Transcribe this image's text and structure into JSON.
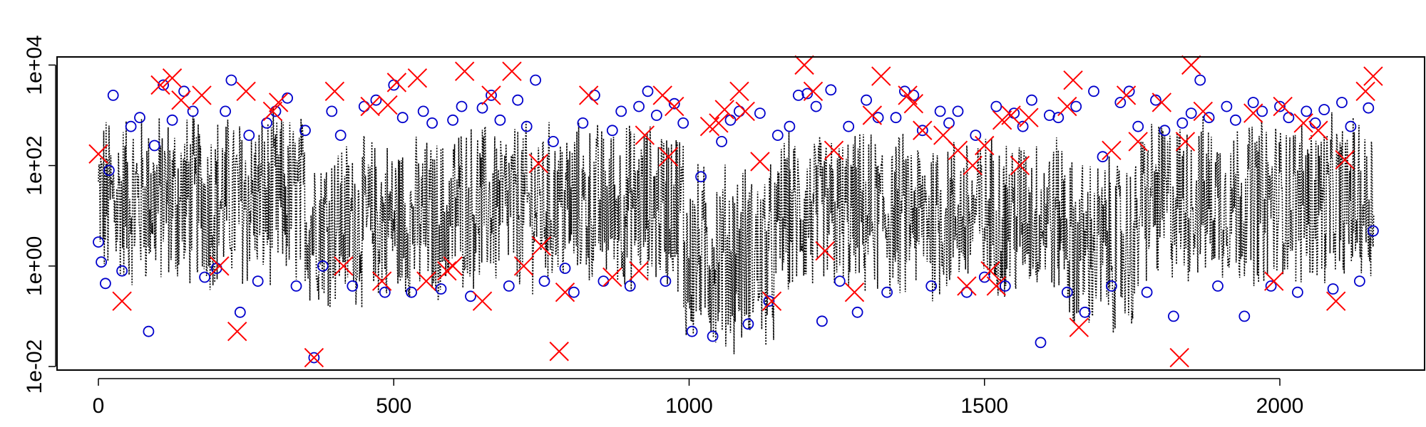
{
  "chart_data": {
    "type": "line",
    "title": "",
    "xlabel": "",
    "ylabel": "",
    "x_scale": "linear",
    "y_scale": "log10",
    "xlim": [
      -70,
      2245
    ],
    "ylim": [
      0.0085,
      14500
    ],
    "x_ticks": [
      {
        "value": 0,
        "label": "0"
      },
      {
        "value": 500,
        "label": "500"
      },
      {
        "value": 1000,
        "label": "1000"
      },
      {
        "value": 1500,
        "label": "1500"
      },
      {
        "value": 2000,
        "label": "2000"
      }
    ],
    "y_ticks": [
      {
        "value": 0.01,
        "label": "1e-02"
      },
      {
        "value": 1,
        "label": "1e+00"
      },
      {
        "value": 100,
        "label": "1e+02"
      },
      {
        "value": 10000,
        "label": "1e+04"
      }
    ],
    "grid": false,
    "legend": "none",
    "n_points": 2160,
    "series": [
      {
        "kind": "dotted-line",
        "color": "#000000",
        "description_values": "Dense noisy series of 2160 points spanning roughly 0.01 to 10000 on a log scale; center of mass near 1e+00 to 1e+02. Lower activity around x=1000-1100 and x=1650-1750 (dips toward 0.01).",
        "segments": [
          {
            "x_start": 0,
            "x_end": 350,
            "log10_center": 1.3,
            "log10_spread": 1.6
          },
          {
            "x_start": 350,
            "x_end": 600,
            "log10_center": 0.9,
            "log10_spread": 1.5
          },
          {
            "x_start": 600,
            "x_end": 990,
            "log10_center": 1.2,
            "log10_spread": 1.5
          },
          {
            "x_start": 990,
            "x_end": 1150,
            "log10_center": 0.2,
            "log10_spread": 1.7
          },
          {
            "x_start": 1150,
            "x_end": 1640,
            "log10_center": 1.0,
            "log10_spread": 1.5
          },
          {
            "x_start": 1640,
            "x_end": 1760,
            "log10_center": 0.4,
            "log10_spread": 1.6
          },
          {
            "x_start": 1760,
            "x_end": 2160,
            "log10_center": 1.3,
            "log10_spread": 1.5
          }
        ]
      },
      {
        "kind": "circles",
        "color": "#0000cc",
        "points": [
          [
            0,
            3
          ],
          [
            5,
            1.2
          ],
          [
            12,
            0.45
          ],
          [
            18,
            80
          ],
          [
            25,
            2500
          ],
          [
            40,
            0.8
          ],
          [
            55,
            600
          ],
          [
            70,
            900
          ],
          [
            85,
            0.05
          ],
          [
            95,
            250
          ],
          [
            110,
            4000
          ],
          [
            125,
            800
          ],
          [
            145,
            3000
          ],
          [
            160,
            1200
          ],
          [
            180,
            0.6
          ],
          [
            200,
            0.9
          ],
          [
            215,
            1200
          ],
          [
            225,
            5000
          ],
          [
            240,
            0.12
          ],
          [
            255,
            400
          ],
          [
            270,
            0.5
          ],
          [
            285,
            700
          ],
          [
            300,
            1200
          ],
          [
            320,
            2200
          ],
          [
            335,
            0.4
          ],
          [
            350,
            500
          ],
          [
            365,
            0.015
          ],
          [
            380,
            1
          ],
          [
            395,
            1200
          ],
          [
            410,
            400
          ],
          [
            430,
            0.4
          ],
          [
            450,
            1500
          ],
          [
            470,
            2000
          ],
          [
            485,
            0.3
          ],
          [
            500,
            4000
          ],
          [
            515,
            900
          ],
          [
            530,
            0.3
          ],
          [
            550,
            1200
          ],
          [
            565,
            700
          ],
          [
            580,
            0.35
          ],
          [
            600,
            800
          ],
          [
            615,
            1500
          ],
          [
            630,
            0.25
          ],
          [
            650,
            1400
          ],
          [
            665,
            2500
          ],
          [
            680,
            800
          ],
          [
            695,
            0.4
          ],
          [
            710,
            2000
          ],
          [
            725,
            600
          ],
          [
            740,
            5000
          ],
          [
            755,
            0.5
          ],
          [
            770,
            300
          ],
          [
            790,
            0.9
          ],
          [
            805,
            0.3
          ],
          [
            820,
            700
          ],
          [
            840,
            2500
          ],
          [
            855,
            0.5
          ],
          [
            870,
            500
          ],
          [
            885,
            1200
          ],
          [
            900,
            0.4
          ],
          [
            915,
            1500
          ],
          [
            930,
            3000
          ],
          [
            945,
            1000
          ],
          [
            960,
            0.5
          ],
          [
            975,
            1700
          ],
          [
            990,
            700
          ],
          [
            1005,
            0.05
          ],
          [
            1020,
            60
          ],
          [
            1040,
            0.04
          ],
          [
            1055,
            300
          ],
          [
            1070,
            800
          ],
          [
            1085,
            1200
          ],
          [
            1100,
            0.07
          ],
          [
            1120,
            1100
          ],
          [
            1135,
            0.2
          ],
          [
            1150,
            400
          ],
          [
            1170,
            600
          ],
          [
            1185,
            2500
          ],
          [
            1200,
            2700
          ],
          [
            1215,
            1500
          ],
          [
            1225,
            0.08
          ],
          [
            1240,
            3200
          ],
          [
            1255,
            0.5
          ],
          [
            1270,
            600
          ],
          [
            1285,
            0.12
          ],
          [
            1300,
            2000
          ],
          [
            1320,
            900
          ],
          [
            1335,
            0.3
          ],
          [
            1350,
            900
          ],
          [
            1365,
            3000
          ],
          [
            1380,
            2500
          ],
          [
            1395,
            500
          ],
          [
            1410,
            0.4
          ],
          [
            1425,
            1200
          ],
          [
            1440,
            700
          ],
          [
            1455,
            1200
          ],
          [
            1470,
            0.3
          ],
          [
            1485,
            400
          ],
          [
            1500,
            0.6
          ],
          [
            1520,
            1500
          ],
          [
            1535,
            0.4
          ],
          [
            1550,
            1100
          ],
          [
            1565,
            600
          ],
          [
            1580,
            2000
          ],
          [
            1595,
            0.03
          ],
          [
            1610,
            1000
          ],
          [
            1625,
            900
          ],
          [
            1640,
            0.3
          ],
          [
            1655,
            1500
          ],
          [
            1670,
            0.12
          ],
          [
            1685,
            3000
          ],
          [
            1700,
            150
          ],
          [
            1715,
            0.4
          ],
          [
            1730,
            1800
          ],
          [
            1745,
            3000
          ],
          [
            1760,
            600
          ],
          [
            1775,
            0.3
          ],
          [
            1790,
            2000
          ],
          [
            1805,
            500
          ],
          [
            1820,
            0.1
          ],
          [
            1835,
            700
          ],
          [
            1850,
            1100
          ],
          [
            1865,
            5000
          ],
          [
            1880,
            900
          ],
          [
            1895,
            0.4
          ],
          [
            1910,
            1500
          ],
          [
            1925,
            800
          ],
          [
            1940,
            0.1
          ],
          [
            1955,
            1800
          ],
          [
            1970,
            1200
          ],
          [
            1985,
            0.4
          ],
          [
            2000,
            1500
          ],
          [
            2015,
            900
          ],
          [
            2030,
            0.3
          ],
          [
            2045,
            1200
          ],
          [
            2060,
            700
          ],
          [
            2075,
            1300
          ],
          [
            2090,
            0.35
          ],
          [
            2105,
            1800
          ],
          [
            2120,
            600
          ],
          [
            2135,
            0.5
          ],
          [
            2150,
            1400
          ],
          [
            2158,
            5
          ]
        ]
      },
      {
        "kind": "crosses",
        "color": "#ff0000",
        "points": [
          [
            0,
            170
          ],
          [
            40,
            0.2
          ],
          [
            105,
            4000
          ],
          [
            125,
            5500
          ],
          [
            140,
            2000
          ],
          [
            175,
            2500
          ],
          [
            205,
            1
          ],
          [
            235,
            0.05
          ],
          [
            250,
            3000
          ],
          [
            295,
            1200
          ],
          [
            305,
            1800
          ],
          [
            365,
            0.015
          ],
          [
            400,
            3000
          ],
          [
            415,
            1
          ],
          [
            460,
            1500
          ],
          [
            480,
            0.5
          ],
          [
            490,
            1600
          ],
          [
            505,
            4500
          ],
          [
            540,
            5500
          ],
          [
            555,
            0.5
          ],
          [
            590,
            0.8
          ],
          [
            600,
            1
          ],
          [
            620,
            7500
          ],
          [
            650,
            0.2
          ],
          [
            665,
            2500
          ],
          [
            700,
            7500
          ],
          [
            720,
            1
          ],
          [
            745,
            110
          ],
          [
            750,
            2.5
          ],
          [
            780,
            0.02
          ],
          [
            790,
            0.3
          ],
          [
            830,
            2500
          ],
          [
            870,
            0.6
          ],
          [
            915,
            0.8
          ],
          [
            925,
            400
          ],
          [
            955,
            2500
          ],
          [
            965,
            150
          ],
          [
            975,
            1500
          ],
          [
            1035,
            600
          ],
          [
            1050,
            700
          ],
          [
            1060,
            1300
          ],
          [
            1085,
            3000
          ],
          [
            1095,
            1200
          ],
          [
            1120,
            120
          ],
          [
            1140,
            0.2
          ],
          [
            1195,
            10000
          ],
          [
            1210,
            3000
          ],
          [
            1230,
            2
          ],
          [
            1245,
            200
          ],
          [
            1280,
            0.3
          ],
          [
            1310,
            1000
          ],
          [
            1325,
            6000
          ],
          [
            1370,
            2500
          ],
          [
            1380,
            1700
          ],
          [
            1395,
            500
          ],
          [
            1430,
            400
          ],
          [
            1455,
            200
          ],
          [
            1470,
            0.4
          ],
          [
            1480,
            100
          ],
          [
            1500,
            250
          ],
          [
            1510,
            0.8
          ],
          [
            1520,
            0.4
          ],
          [
            1530,
            800
          ],
          [
            1545,
            1000
          ],
          [
            1560,
            100
          ],
          [
            1575,
            900
          ],
          [
            1640,
            1500
          ],
          [
            1650,
            5000
          ],
          [
            1660,
            0.06
          ],
          [
            1715,
            200
          ],
          [
            1740,
            2500
          ],
          [
            1760,
            300
          ],
          [
            1800,
            1800
          ],
          [
            1830,
            0.015
          ],
          [
            1840,
            300
          ],
          [
            1850,
            10000
          ],
          [
            1870,
            1200
          ],
          [
            1955,
            1100
          ],
          [
            1990,
            0.5
          ],
          [
            2005,
            1500
          ],
          [
            2040,
            700
          ],
          [
            2065,
            500
          ],
          [
            2095,
            0.2
          ],
          [
            2110,
            130
          ],
          [
            2145,
            3000
          ],
          [
            2158,
            6000
          ]
        ]
      }
    ]
  }
}
